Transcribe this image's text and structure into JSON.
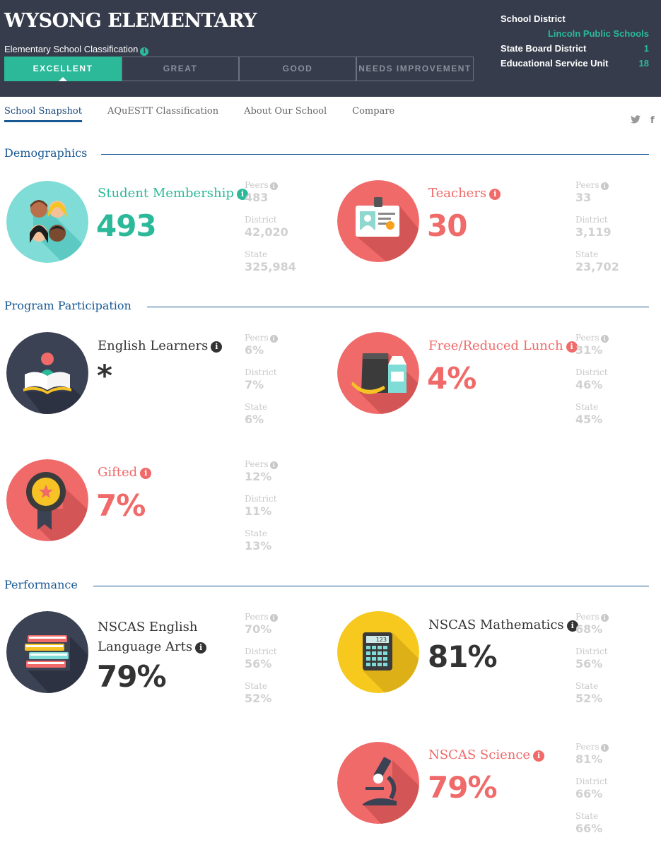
{
  "header": {
    "school_name": "WYSONG ELEMENTARY",
    "classification_label": "Elementary School Classification",
    "tabs": [
      "EXCELLENT",
      "GREAT",
      "GOOD",
      "NEEDS IMPROVEMENT"
    ],
    "active_tab": "EXCELLENT",
    "district": {
      "school_district_label": "School District",
      "school_district_value": "Lincoln Public Schools",
      "state_board_label": "State Board District",
      "state_board_value": "1",
      "esu_label": "Educational Service Unit",
      "esu_value": "18"
    }
  },
  "nav": {
    "items": [
      "School Snapshot",
      "AQuESTT Classification",
      "About Our School",
      "Compare"
    ],
    "twitter": "twitter-icon",
    "facebook": "facebook-icon"
  },
  "labels": {
    "peers": "Peers",
    "district": "District",
    "state": "State"
  },
  "sections": {
    "demographics": "Demographics",
    "program": "Program Participation",
    "performance": "Performance"
  },
  "metrics": {
    "membership": {
      "label": "Student Membership",
      "value": "493",
      "peers": "483",
      "district": "42,020",
      "state": "325,984",
      "icon": "students-icon"
    },
    "teachers": {
      "label": "Teachers",
      "value": "30",
      "peers": "33",
      "district": "3,119",
      "state": "23,702",
      "icon": "id-badge-icon"
    },
    "ell": {
      "label": "English Learners",
      "value": "*",
      "peers": "6%",
      "district": "7%",
      "state": "6%",
      "icon": "reader-icon"
    },
    "lunch": {
      "label": "Free/Reduced Lunch",
      "value": "4%",
      "peers": "31%",
      "district": "46%",
      "state": "45%",
      "icon": "lunch-icon"
    },
    "gifted": {
      "label": "Gifted",
      "value": "7%",
      "peers": "12%",
      "district": "11%",
      "state": "13%",
      "icon": "award-ribbon-icon"
    },
    "ela": {
      "label_line1": "NSCAS English",
      "label_line2": "Language Arts",
      "value": "79%",
      "peers": "70%",
      "district": "56%",
      "state": "52%",
      "icon": "books-icon"
    },
    "math": {
      "label": "NSCAS Mathematics",
      "value": "81%",
      "peers": "68%",
      "district": "56%",
      "state": "52%",
      "icon": "calculator-icon",
      "calc_display": "123"
    },
    "science": {
      "label": "NSCAS Science",
      "value": "79%",
      "peers": "81%",
      "district": "66%",
      "state": "66%",
      "icon": "microscope-icon"
    }
  },
  "colors": {
    "header_bg": "#363c4c",
    "accent_teal": "#2bb99a",
    "accent_red": "#f06a6a",
    "accent_yellow": "#f7c81e",
    "dark_circle": "#3b4253",
    "section_blue": "#1a5a94"
  }
}
